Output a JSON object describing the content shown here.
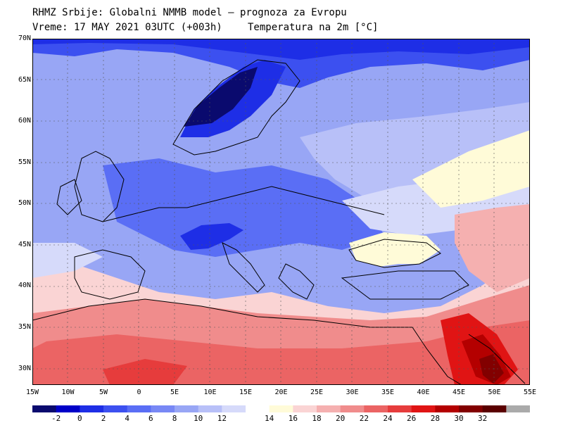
{
  "header": {
    "line1": "RHMZ Srbije: Globalni NMMB model — prognoza za Evropu",
    "line2_left": "Vreme: 17 MAY 2021 03UTC (+003h)",
    "line2_right": "Temperatura na 2m [°C]"
  },
  "axes": {
    "lat_labels": [
      "70N",
      "65N",
      "60N",
      "55N",
      "50N",
      "45N",
      "40N",
      "35N",
      "30N"
    ],
    "lon_labels": [
      "15W",
      "10W",
      "5W",
      "0",
      "5E",
      "10E",
      "15E",
      "20E",
      "25E",
      "30E",
      "35E",
      "40E",
      "45E",
      "50E",
      "55E"
    ]
  },
  "colorbar": {
    "labels": [
      "-2",
      "0",
      "2",
      "4",
      "6",
      "8",
      "10",
      "12",
      "14",
      "16",
      "18",
      "20",
      "22",
      "24",
      "26",
      "28",
      "30",
      "32"
    ],
    "colors": [
      "#0a0a6e",
      "#0000c8",
      "#1e2ee6",
      "#3c50f0",
      "#5a6ef5",
      "#7888f5",
      "#98a6f5",
      "#b8c0f8",
      "#d6dafa",
      "#ffffff",
      "#fffbd8",
      "#fad4d4",
      "#f5b0b0",
      "#f08c8c",
      "#eb6464",
      "#e63c3c",
      "#e01414",
      "#b40000",
      "#820000",
      "#5a0000",
      "#aaaaaa"
    ]
  },
  "map": {
    "lon_range": [
      -15,
      55
    ],
    "lat_range": [
      28,
      70
    ],
    "field": "Temperatura na 2m",
    "unit": "°C"
  }
}
